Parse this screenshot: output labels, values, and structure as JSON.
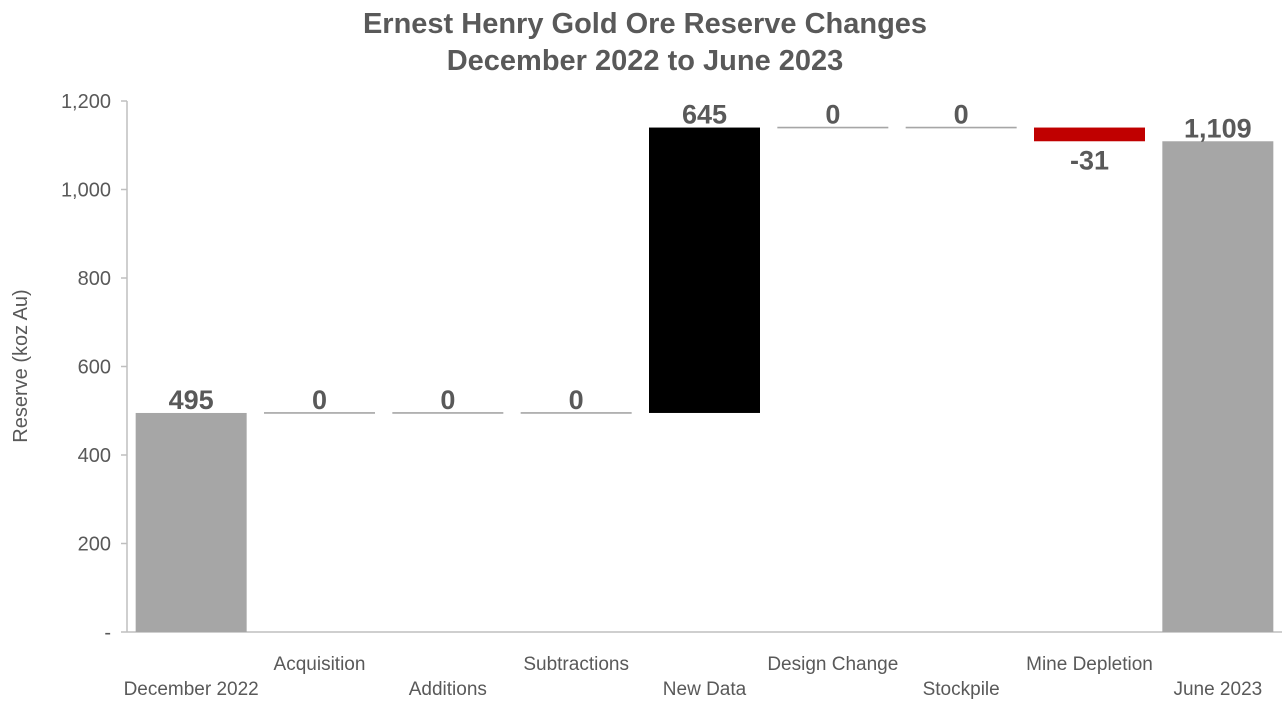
{
  "chart_data": {
    "type": "waterfall",
    "title": "Ernest Henry Gold Ore Reserve Changes",
    "subtitle": "December 2022 to June 2023",
    "ylabel": "Reserve (koz Au)",
    "xlabel": "",
    "ylim": [
      0,
      1200
    ],
    "yticks": [
      0,
      200,
      400,
      600,
      800,
      1000,
      1200
    ],
    "ytick_labels": [
      "-",
      "200",
      "400",
      "600",
      "800",
      "1,000",
      "1,200"
    ],
    "grid": false,
    "legend": "none",
    "categories": [
      "December 2022",
      "Acquisition",
      "Additions",
      "Subtractions",
      "New Data",
      "Design Change",
      "Stockpile",
      "Mine Depletion",
      "June 2023"
    ],
    "steps": [
      {
        "category": "December 2022",
        "kind": "total",
        "value": 495,
        "label": "495"
      },
      {
        "category": "Acquisition",
        "kind": "change",
        "value": 0,
        "label": "0"
      },
      {
        "category": "Additions",
        "kind": "change",
        "value": 0,
        "label": "0"
      },
      {
        "category": "Subtractions",
        "kind": "change",
        "value": 0,
        "label": "0"
      },
      {
        "category": "New Data",
        "kind": "change",
        "value": 645,
        "label": "645"
      },
      {
        "category": "Design Change",
        "kind": "change",
        "value": 0,
        "label": "0"
      },
      {
        "category": "Stockpile",
        "kind": "change",
        "value": 0,
        "label": "0"
      },
      {
        "category": "Mine Depletion",
        "kind": "change",
        "value": -31,
        "label": "-31"
      },
      {
        "category": "June 2023",
        "kind": "total",
        "value": 1109,
        "label": "1,109"
      }
    ],
    "colors": {
      "total": "#a6a6a6",
      "increase": "#000000",
      "decrease": "#c00000",
      "zero": "#a6a6a6",
      "text": "#595959",
      "axis": "#bfbfbf"
    }
  }
}
